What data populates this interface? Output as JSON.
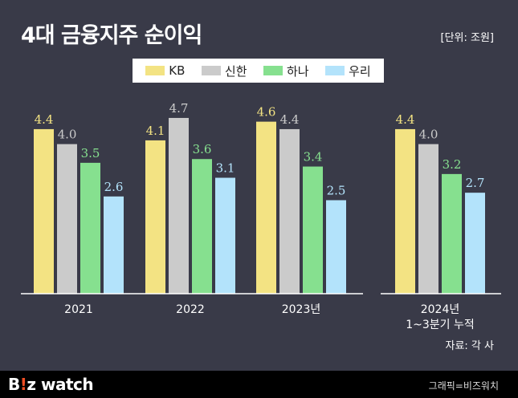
{
  "header": {
    "title": "4대 금융지주 순이익",
    "unit": "[단위: 조원]"
  },
  "footer": {
    "logo_b": "B",
    "logo_i": "!",
    "logo_rest": "z watch",
    "credit": "그래픽=비즈워치",
    "source": "자료: 각 사"
  },
  "chart_data": {
    "type": "bar",
    "title": "4대 금융지주 순이익",
    "unit": "[단위: 조원]",
    "ylim": [
      0,
      5.3
    ],
    "categories": [
      [
        "2021"
      ],
      [
        "2022"
      ],
      [
        "2023년"
      ],
      [
        "2024년",
        "1~3분기 누적"
      ]
    ],
    "series": [
      {
        "name": "KB",
        "color": "#f3e383",
        "values": [
          4.4,
          4.1,
          4.6,
          4.4
        ]
      },
      {
        "name": "신한",
        "color": "#cbcbcb",
        "values": [
          4.0,
          4.7,
          4.4,
          4.0
        ]
      },
      {
        "name": "하나",
        "color": "#86e08f",
        "values": [
          3.5,
          3.6,
          3.4,
          3.2
        ]
      },
      {
        "name": "우리",
        "color": "#b3e3fb",
        "values": [
          2.6,
          3.1,
          2.5,
          2.7
        ]
      }
    ],
    "legend_position": "top-center",
    "grid": false,
    "source": "자료: 각 사"
  }
}
